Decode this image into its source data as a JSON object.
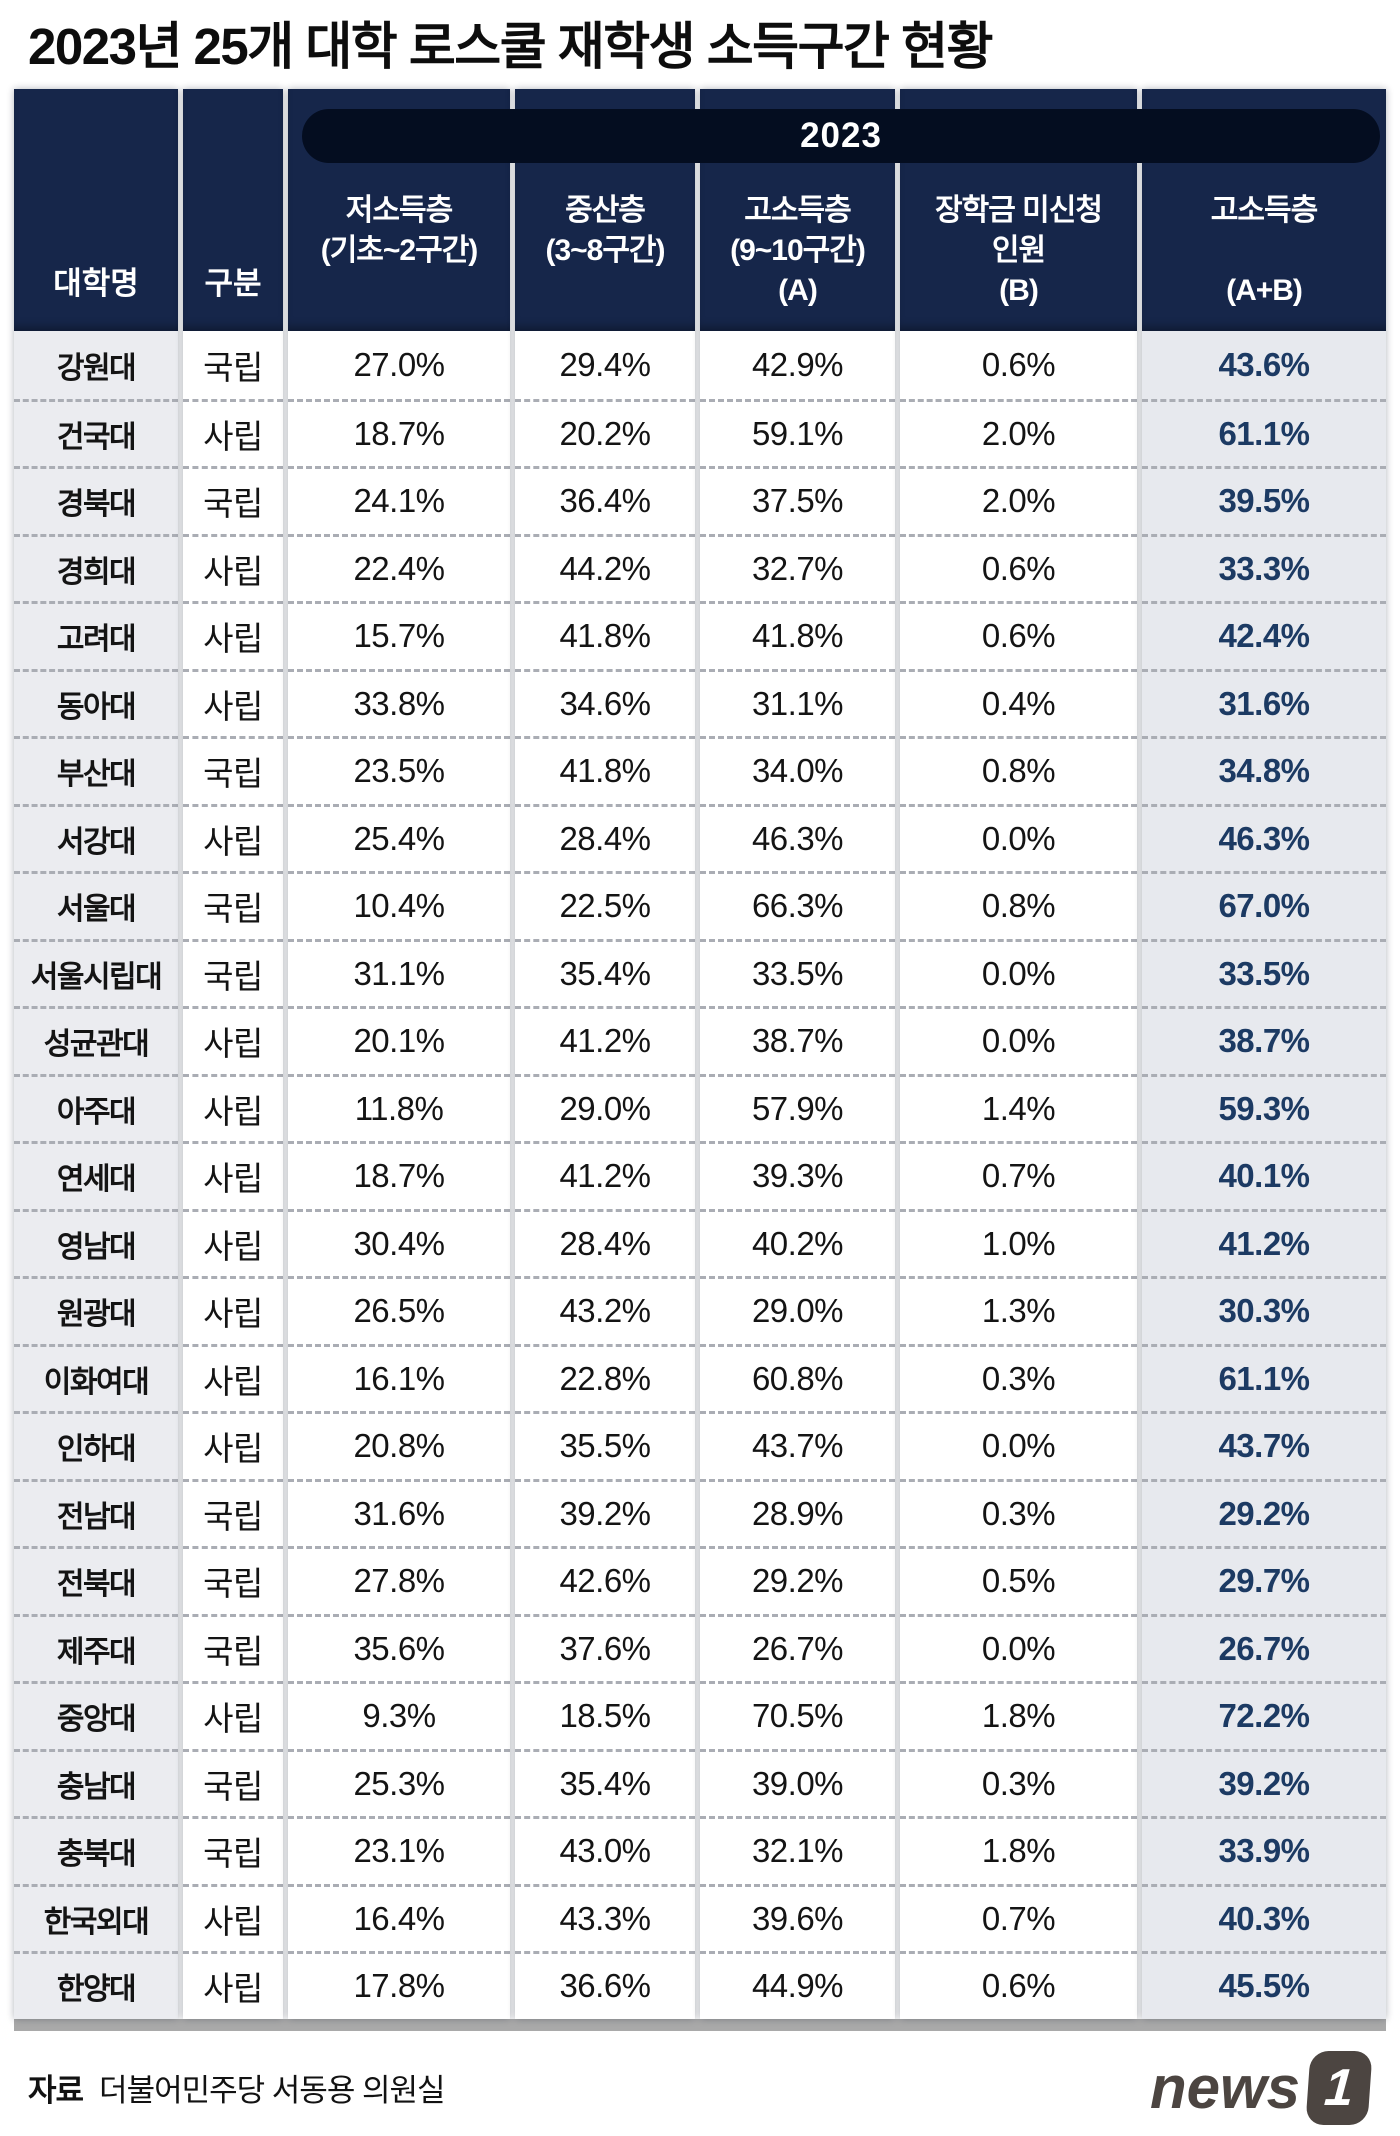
{
  "title": "2023년 25개 대학 로스쿨 재학생 소득구간 현황",
  "table": {
    "year_header": "2023",
    "columns": [
      {
        "label": "대학명",
        "sub": "",
        "tag": ""
      },
      {
        "label": "구분",
        "sub": "",
        "tag": ""
      },
      {
        "label": "저소득층",
        "sub": "(기초~2구간)",
        "tag": ""
      },
      {
        "label": "중산층",
        "sub": "(3~8구간)",
        "tag": ""
      },
      {
        "label": "고소득층",
        "sub": "(9~10구간)",
        "tag": "(A)"
      },
      {
        "label": "장학금 미신청",
        "sub": "인원",
        "tag": "(B)"
      },
      {
        "label": "고소득층",
        "sub": "",
        "tag": "(A+B)"
      }
    ],
    "rows": [
      {
        "name": "강원대",
        "type": "국립",
        "low": "27.0%",
        "mid": "29.4%",
        "high": "42.9%",
        "no_apply": "0.6%",
        "total": "43.6%"
      },
      {
        "name": "건국대",
        "type": "사립",
        "low": "18.7%",
        "mid": "20.2%",
        "high": "59.1%",
        "no_apply": "2.0%",
        "total": "61.1%"
      },
      {
        "name": "경북대",
        "type": "국립",
        "low": "24.1%",
        "mid": "36.4%",
        "high": "37.5%",
        "no_apply": "2.0%",
        "total": "39.5%"
      },
      {
        "name": "경희대",
        "type": "사립",
        "low": "22.4%",
        "mid": "44.2%",
        "high": "32.7%",
        "no_apply": "0.6%",
        "total": "33.3%"
      },
      {
        "name": "고려대",
        "type": "사립",
        "low": "15.7%",
        "mid": "41.8%",
        "high": "41.8%",
        "no_apply": "0.6%",
        "total": "42.4%"
      },
      {
        "name": "동아대",
        "type": "사립",
        "low": "33.8%",
        "mid": "34.6%",
        "high": "31.1%",
        "no_apply": "0.4%",
        "total": "31.6%"
      },
      {
        "name": "부산대",
        "type": "국립",
        "low": "23.5%",
        "mid": "41.8%",
        "high": "34.0%",
        "no_apply": "0.8%",
        "total": "34.8%"
      },
      {
        "name": "서강대",
        "type": "사립",
        "low": "25.4%",
        "mid": "28.4%",
        "high": "46.3%",
        "no_apply": "0.0%",
        "total": "46.3%"
      },
      {
        "name": "서울대",
        "type": "국립",
        "low": "10.4%",
        "mid": "22.5%",
        "high": "66.3%",
        "no_apply": "0.8%",
        "total": "67.0%"
      },
      {
        "name": "서울시립대",
        "type": "국립",
        "low": "31.1%",
        "mid": "35.4%",
        "high": "33.5%",
        "no_apply": "0.0%",
        "total": "33.5%"
      },
      {
        "name": "성균관대",
        "type": "사립",
        "low": "20.1%",
        "mid": "41.2%",
        "high": "38.7%",
        "no_apply": "0.0%",
        "total": "38.7%"
      },
      {
        "name": "아주대",
        "type": "사립",
        "low": "11.8%",
        "mid": "29.0%",
        "high": "57.9%",
        "no_apply": "1.4%",
        "total": "59.3%"
      },
      {
        "name": "연세대",
        "type": "사립",
        "low": "18.7%",
        "mid": "41.2%",
        "high": "39.3%",
        "no_apply": "0.7%",
        "total": "40.1%"
      },
      {
        "name": "영남대",
        "type": "사립",
        "low": "30.4%",
        "mid": "28.4%",
        "high": "40.2%",
        "no_apply": "1.0%",
        "total": "41.2%"
      },
      {
        "name": "원광대",
        "type": "사립",
        "low": "26.5%",
        "mid": "43.2%",
        "high": "29.0%",
        "no_apply": "1.3%",
        "total": "30.3%"
      },
      {
        "name": "이화여대",
        "type": "사립",
        "low": "16.1%",
        "mid": "22.8%",
        "high": "60.8%",
        "no_apply": "0.3%",
        "total": "61.1%"
      },
      {
        "name": "인하대",
        "type": "사립",
        "low": "20.8%",
        "mid": "35.5%",
        "high": "43.7%",
        "no_apply": "0.0%",
        "total": "43.7%"
      },
      {
        "name": "전남대",
        "type": "국립",
        "low": "31.6%",
        "mid": "39.2%",
        "high": "28.9%",
        "no_apply": "0.3%",
        "total": "29.2%"
      },
      {
        "name": "전북대",
        "type": "국립",
        "low": "27.8%",
        "mid": "42.6%",
        "high": "29.2%",
        "no_apply": "0.5%",
        "total": "29.7%"
      },
      {
        "name": "제주대",
        "type": "국립",
        "low": "35.6%",
        "mid": "37.6%",
        "high": "26.7%",
        "no_apply": "0.0%",
        "total": "26.7%"
      },
      {
        "name": "중앙대",
        "type": "사립",
        "low": "9.3%",
        "mid": "18.5%",
        "high": "70.5%",
        "no_apply": "1.8%",
        "total": "72.2%"
      },
      {
        "name": "충남대",
        "type": "국립",
        "low": "25.3%",
        "mid": "35.4%",
        "high": "39.0%",
        "no_apply": "0.3%",
        "total": "39.2%"
      },
      {
        "name": "충북대",
        "type": "국립",
        "low": "23.1%",
        "mid": "43.0%",
        "high": "32.1%",
        "no_apply": "1.8%",
        "total": "33.9%"
      },
      {
        "name": "한국외대",
        "type": "사립",
        "low": "16.4%",
        "mid": "43.3%",
        "high": "39.6%",
        "no_apply": "0.7%",
        "total": "40.3%"
      },
      {
        "name": "한양대",
        "type": "사립",
        "low": "17.8%",
        "mid": "36.6%",
        "high": "44.9%",
        "no_apply": "0.6%",
        "total": "45.5%"
      }
    ]
  },
  "footer": {
    "source_label": "자료",
    "source_text": "더불어민주당 서동용 의원실",
    "logo_text": "news",
    "logo_one": "1"
  },
  "colors": {
    "header_navy": "#16264a",
    "pill_navy": "#040d20",
    "total_text_navy": "#1c3a63",
    "name_col_bg": "#ebecf0",
    "total_col_bg": "#e7e9ee",
    "bottom_bar_gray": "#a9a9a9",
    "logo_gray": "#4c4541"
  },
  "chart_data": {
    "type": "table",
    "title": "2023년 25개 대학 로스쿨 재학생 소득구간 현황",
    "year": "2023",
    "source": "자료 더불어민주당 서동용 의원실",
    "columns": [
      "대학명",
      "구분",
      "저소득층(기초~2구간)",
      "중산층(3~8구간)",
      "고소득층(9~10구간)(A)",
      "장학금 미신청 인원(B)",
      "고소득층(A+B)"
    ],
    "rows": [
      [
        "강원대",
        "국립",
        27.0,
        29.4,
        42.9,
        0.6,
        43.6
      ],
      [
        "건국대",
        "사립",
        18.7,
        20.2,
        59.1,
        2.0,
        61.1
      ],
      [
        "경북대",
        "국립",
        24.1,
        36.4,
        37.5,
        2.0,
        39.5
      ],
      [
        "경희대",
        "사립",
        22.4,
        44.2,
        32.7,
        0.6,
        33.3
      ],
      [
        "고려대",
        "사립",
        15.7,
        41.8,
        41.8,
        0.6,
        42.4
      ],
      [
        "동아대",
        "사립",
        33.8,
        34.6,
        31.1,
        0.4,
        31.6
      ],
      [
        "부산대",
        "국립",
        23.5,
        41.8,
        34.0,
        0.8,
        34.8
      ],
      [
        "서강대",
        "사립",
        25.4,
        28.4,
        46.3,
        0.0,
        46.3
      ],
      [
        "서울대",
        "국립",
        10.4,
        22.5,
        66.3,
        0.8,
        67.0
      ],
      [
        "서울시립대",
        "국립",
        31.1,
        35.4,
        33.5,
        0.0,
        33.5
      ],
      [
        "성균관대",
        "사립",
        20.1,
        41.2,
        38.7,
        0.0,
        38.7
      ],
      [
        "아주대",
        "사립",
        11.8,
        29.0,
        57.9,
        1.4,
        59.3
      ],
      [
        "연세대",
        "사립",
        18.7,
        41.2,
        39.3,
        0.7,
        40.1
      ],
      [
        "영남대",
        "사립",
        30.4,
        28.4,
        40.2,
        1.0,
        41.2
      ],
      [
        "원광대",
        "사립",
        26.5,
        43.2,
        29.0,
        1.3,
        30.3
      ],
      [
        "이화여대",
        "사립",
        16.1,
        22.8,
        60.8,
        0.3,
        61.1
      ],
      [
        "인하대",
        "사립",
        20.8,
        35.5,
        43.7,
        0.0,
        43.7
      ],
      [
        "전남대",
        "국립",
        31.6,
        39.2,
        28.9,
        0.3,
        29.2
      ],
      [
        "전북대",
        "국립",
        27.8,
        42.6,
        29.2,
        0.5,
        29.7
      ],
      [
        "제주대",
        "국립",
        35.6,
        37.6,
        26.7,
        0.0,
        26.7
      ],
      [
        "중앙대",
        "사립",
        9.3,
        18.5,
        70.5,
        1.8,
        72.2
      ],
      [
        "충남대",
        "국립",
        25.3,
        35.4,
        39.0,
        0.3,
        39.2
      ],
      [
        "충북대",
        "국립",
        23.1,
        43.0,
        32.1,
        1.8,
        33.9
      ],
      [
        "한국외대",
        "사립",
        16.4,
        43.3,
        39.6,
        0.7,
        40.3
      ],
      [
        "한양대",
        "사립",
        17.8,
        36.6,
        44.9,
        0.6,
        45.5
      ]
    ]
  }
}
